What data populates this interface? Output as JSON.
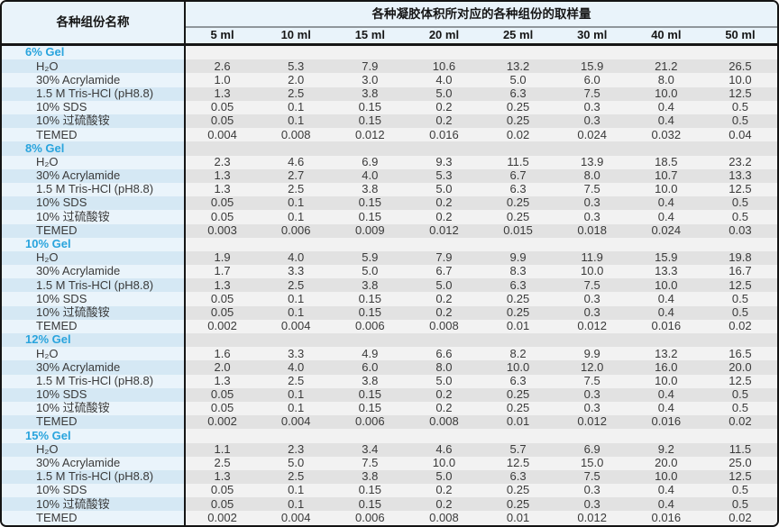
{
  "colors": {
    "outer_border": "#141414",
    "header_bg": "#e9f3fa",
    "left_col_light": "#eaf4fb",
    "left_col_dark": "#d5e8f4",
    "data_light": "#f2f2f2",
    "data_dark": "#e2e2e2",
    "gel_title_accent": "#29a4dd",
    "body_text": "#3a3a3a"
  },
  "table": {
    "col_header_left": "各种组份名称",
    "col_header_span": "各种凝胶体积所对应的各种组份的取样量",
    "volumes": [
      "5 ml",
      "10 ml",
      "15 ml",
      "20 ml",
      "25 ml",
      "30 ml",
      "40 ml",
      "50 ml"
    ],
    "sections": [
      {
        "name": "6% Gel",
        "rows": [
          {
            "label": "H₂O",
            "values": [
              "2.6",
              "5.3",
              "7.9",
              "10.6",
              "13.2",
              "15.9",
              "21.2",
              "26.5"
            ]
          },
          {
            "label": "30% Acrylamide",
            "values": [
              "1.0",
              "2.0",
              "3.0",
              "4.0",
              "5.0",
              "6.0",
              "8.0",
              "10.0"
            ]
          },
          {
            "label": "1.5 M Tris-HCl (pH8.8)",
            "values": [
              "1.3",
              "2.5",
              "3.8",
              "5.0",
              "6.3",
              "7.5",
              "10.0",
              "12.5"
            ]
          },
          {
            "label": "10% SDS",
            "values": [
              "0.05",
              "0.1",
              "0.15",
              "0.2",
              "0.25",
              "0.3",
              "0.4",
              "0.5"
            ]
          },
          {
            "label": "10% 过硫酸铵",
            "values": [
              "0.05",
              "0.1",
              "0.15",
              "0.2",
              "0.25",
              "0.3",
              "0.4",
              "0.5"
            ]
          },
          {
            "label": "TEMED",
            "values": [
              "0.004",
              "0.008",
              "0.012",
              "0.016",
              "0.02",
              "0.024",
              "0.032",
              "0.04"
            ]
          }
        ]
      },
      {
        "name": "8% Gel",
        "rows": [
          {
            "label": "H₂O",
            "values": [
              "2.3",
              "4.6",
              "6.9",
              "9.3",
              "11.5",
              "13.9",
              "18.5",
              "23.2"
            ]
          },
          {
            "label": "30% Acrylamide",
            "values": [
              "1.3",
              "2.7",
              "4.0",
              "5.3",
              "6.7",
              "8.0",
              "10.7",
              "13.3"
            ]
          },
          {
            "label": "1.5 M Tris-HCl (pH8.8)",
            "values": [
              "1.3",
              "2.5",
              "3.8",
              "5.0",
              "6.3",
              "7.5",
              "10.0",
              "12.5"
            ]
          },
          {
            "label": "10% SDS",
            "values": [
              "0.05",
              "0.1",
              "0.15",
              "0.2",
              "0.25",
              "0.3",
              "0.4",
              "0.5"
            ]
          },
          {
            "label": "10% 过硫酸铵",
            "values": [
              "0.05",
              "0.1",
              "0.15",
              "0.2",
              "0.25",
              "0.3",
              "0.4",
              "0.5"
            ]
          },
          {
            "label": "TEMED",
            "values": [
              "0.003",
              "0.006",
              "0.009",
              "0.012",
              "0.015",
              "0.018",
              "0.024",
              "0.03"
            ]
          }
        ]
      },
      {
        "name": "10% Gel",
        "rows": [
          {
            "label": "H₂O",
            "values": [
              "1.9",
              "4.0",
              "5.9",
              "7.9",
              "9.9",
              "11.9",
              "15.9",
              "19.8"
            ]
          },
          {
            "label": "30% Acrylamide",
            "values": [
              "1.7",
              "3.3",
              "5.0",
              "6.7",
              "8.3",
              "10.0",
              "13.3",
              "16.7"
            ]
          },
          {
            "label": "1.5 M Tris-HCl (pH8.8)",
            "values": [
              "1.3",
              "2.5",
              "3.8",
              "5.0",
              "6.3",
              "7.5",
              "10.0",
              "12.5"
            ]
          },
          {
            "label": "10% SDS",
            "values": [
              "0.05",
              "0.1",
              "0.15",
              "0.2",
              "0.25",
              "0.3",
              "0.4",
              "0.5"
            ]
          },
          {
            "label": "10% 过硫酸铵",
            "values": [
              "0.05",
              "0.1",
              "0.15",
              "0.2",
              "0.25",
              "0.3",
              "0.4",
              "0.5"
            ]
          },
          {
            "label": "TEMED",
            "values": [
              "0.002",
              "0.004",
              "0.006",
              "0.008",
              "0.01",
              "0.012",
              "0.016",
              "0.02"
            ]
          }
        ]
      },
      {
        "name": "12% Gel",
        "rows": [
          {
            "label": "H₂O",
            "values": [
              "1.6",
              "3.3",
              "4.9",
              "6.6",
              "8.2",
              "9.9",
              "13.2",
              "16.5"
            ]
          },
          {
            "label": "30% Acrylamide",
            "values": [
              "2.0",
              "4.0",
              "6.0",
              "8.0",
              "10.0",
              "12.0",
              "16.0",
              "20.0"
            ]
          },
          {
            "label": "1.5 M Tris-HCl (pH8.8)",
            "values": [
              "1.3",
              "2.5",
              "3.8",
              "5.0",
              "6.3",
              "7.5",
              "10.0",
              "12.5"
            ]
          },
          {
            "label": "10% SDS",
            "values": [
              "0.05",
              "0.1",
              "0.15",
              "0.2",
              "0.25",
              "0.3",
              "0.4",
              "0.5"
            ]
          },
          {
            "label": "10% 过硫酸铵",
            "values": [
              "0.05",
              "0.1",
              "0.15",
              "0.2",
              "0.25",
              "0.3",
              "0.4",
              "0.5"
            ]
          },
          {
            "label": "TEMED",
            "values": [
              "0.002",
              "0.004",
              "0.006",
              "0.008",
              "0.01",
              "0.012",
              "0.016",
              "0.02"
            ]
          }
        ]
      },
      {
        "name": "15% Gel",
        "rows": [
          {
            "label": "H₂O",
            "values": [
              "1.1",
              "2.3",
              "3.4",
              "4.6",
              "5.7",
              "6.9",
              "9.2",
              "11.5"
            ]
          },
          {
            "label": "30% Acrylamide",
            "values": [
              "2.5",
              "5.0",
              "7.5",
              "10.0",
              "12.5",
              "15.0",
              "20.0",
              "25.0"
            ]
          },
          {
            "label": "1.5 M Tris-HCl (pH8.8)",
            "values": [
              "1.3",
              "2.5",
              "3.8",
              "5.0",
              "6.3",
              "7.5",
              "10.0",
              "12.5"
            ]
          },
          {
            "label": "10% SDS",
            "values": [
              "0.05",
              "0.1",
              "0.15",
              "0.2",
              "0.25",
              "0.3",
              "0.4",
              "0.5"
            ]
          },
          {
            "label": "10% 过硫酸铵",
            "values": [
              "0.05",
              "0.1",
              "0.15",
              "0.2",
              "0.25",
              "0.3",
              "0.4",
              "0.5"
            ]
          },
          {
            "label": "TEMED",
            "values": [
              "0.002",
              "0.004",
              "0.006",
              "0.008",
              "0.01",
              "0.012",
              "0.016",
              "0.02"
            ]
          }
        ]
      }
    ]
  }
}
